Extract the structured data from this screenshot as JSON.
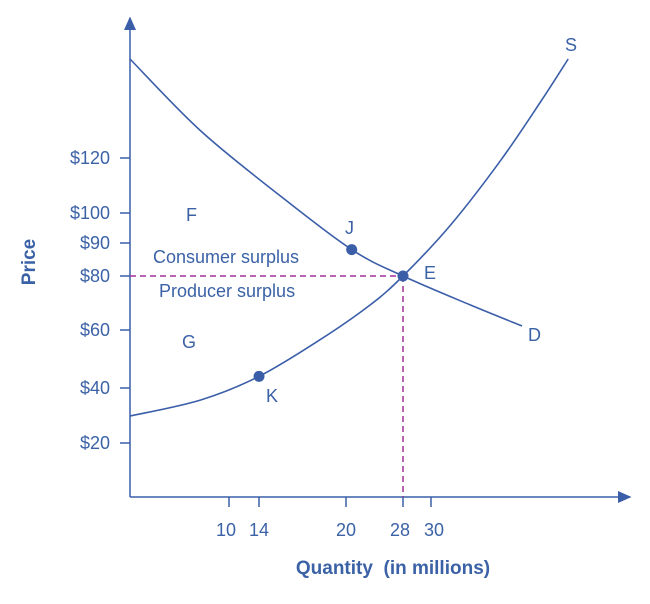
{
  "chart_data": {
    "type": "line",
    "xlabel": "Quantity  (in millions)",
    "ylabel": "Price",
    "x_ticks": [
      10,
      14,
      20,
      28,
      30
    ],
    "y_ticks": [
      20,
      40,
      60,
      80,
      90,
      100,
      120
    ],
    "y_tick_labels": [
      "$20",
      "$40",
      "$60",
      "$80",
      "$90",
      "$100",
      "$120"
    ],
    "grid": false,
    "series": [
      {
        "name": "D",
        "points": [
          [
            0,
            156
          ],
          [
            7.1,
            130
          ],
          [
            15.4,
            106.5
          ],
          [
            20.8,
            88
          ],
          [
            28,
            80
          ],
          [
            32.8,
            69.3
          ],
          [
            36.5,
            61.5
          ]
        ]
      },
      {
        "name": "S",
        "points": [
          [
            0,
            29.8
          ],
          [
            7.1,
            35.6
          ],
          [
            14,
            44
          ],
          [
            18.2,
            56.6
          ],
          [
            23.4,
            69.3
          ],
          [
            28,
            80
          ],
          [
            31.4,
            96
          ],
          [
            35,
            119.3
          ],
          [
            37.9,
            141
          ],
          [
            39.8,
            156
          ]
        ]
      }
    ],
    "points": [
      {
        "label": "J",
        "x": 20.8,
        "y": 88
      },
      {
        "label": "E",
        "x": 28,
        "y": 80
      },
      {
        "label": "K",
        "x": 14,
        "y": 44
      }
    ],
    "equilibrium": {
      "x": 28,
      "y": 80
    },
    "annotations": [
      {
        "text": "F"
      },
      {
        "text": "G"
      },
      {
        "text": "Consumer surplus"
      },
      {
        "text": "Producer surplus"
      }
    ],
    "colors": {
      "curve": "#3b5ea8",
      "text": "#3b62a6",
      "dashed": "#a0309a"
    }
  }
}
